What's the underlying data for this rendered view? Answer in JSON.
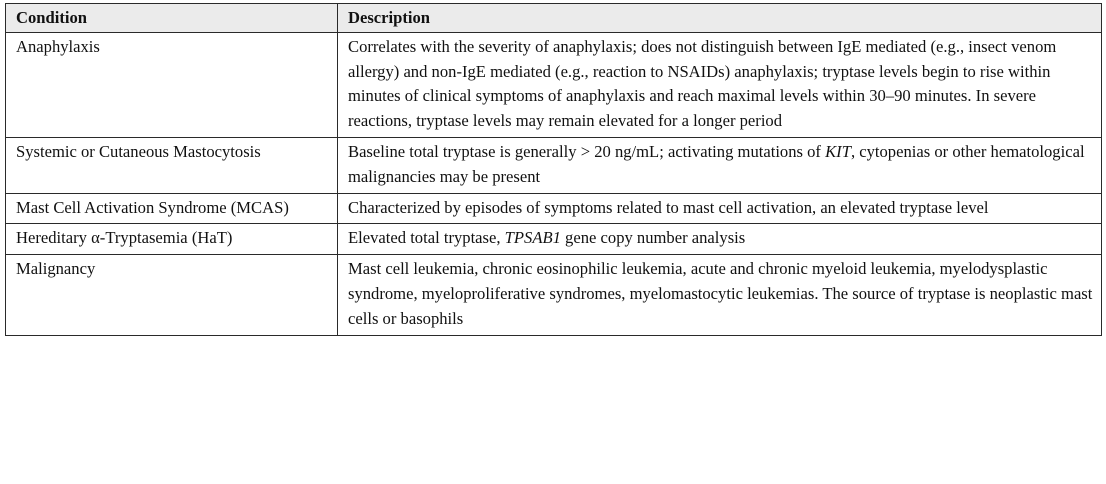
{
  "table": {
    "headers": [
      "Condition",
      "Description"
    ],
    "rows": [
      {
        "condition": "Anaphylaxis",
        "description": [
          {
            "text": "Correlates with the severity of anaphylaxis; does not distinguish between IgE mediated (e.g., insect venom allergy) and non-IgE mediated (e.g., reaction to NSAIDs) anaphylaxis; tryptase levels begin to rise within minutes of clinical symptoms of anaphylaxis and reach maximal levels within 30–90 minutes. In severe reactions, tryptase levels may remain elevated for a longer period",
            "italic": false
          }
        ]
      },
      {
        "condition": "Systemic or Cutaneous Mastocytosis",
        "description": [
          {
            "text": "Baseline total tryptase is generally > 20 ng/mL; activating mutations of ",
            "italic": false
          },
          {
            "text": "KIT",
            "italic": true
          },
          {
            "text": ", cytopenias or other hematological malignancies may be present",
            "italic": false
          }
        ]
      },
      {
        "condition": "Mast Cell Activation Syndrome (MCAS)",
        "description": [
          {
            "text": "Characterized by episodes of symptoms related to mast cell activation, an elevated tryptase level",
            "italic": false
          }
        ]
      },
      {
        "condition": "Hereditary α-Tryptasemia (HaT)",
        "description": [
          {
            "text": "Elevated total tryptase, ",
            "italic": false
          },
          {
            "text": "TPSAB1",
            "italic": true
          },
          {
            "text": " gene copy number analysis",
            "italic": false
          }
        ]
      },
      {
        "condition": "Malignancy",
        "description": [
          {
            "text": "Mast cell leukemia, chronic eosinophilic leukemia, acute and chronic myeloid leukemia, myelodysplastic syndrome, myeloproliferative syndromes, myelomastocytic leukemias. The source of tryptase is neoplastic mast cells or basophils",
            "italic": false
          }
        ]
      }
    ]
  }
}
